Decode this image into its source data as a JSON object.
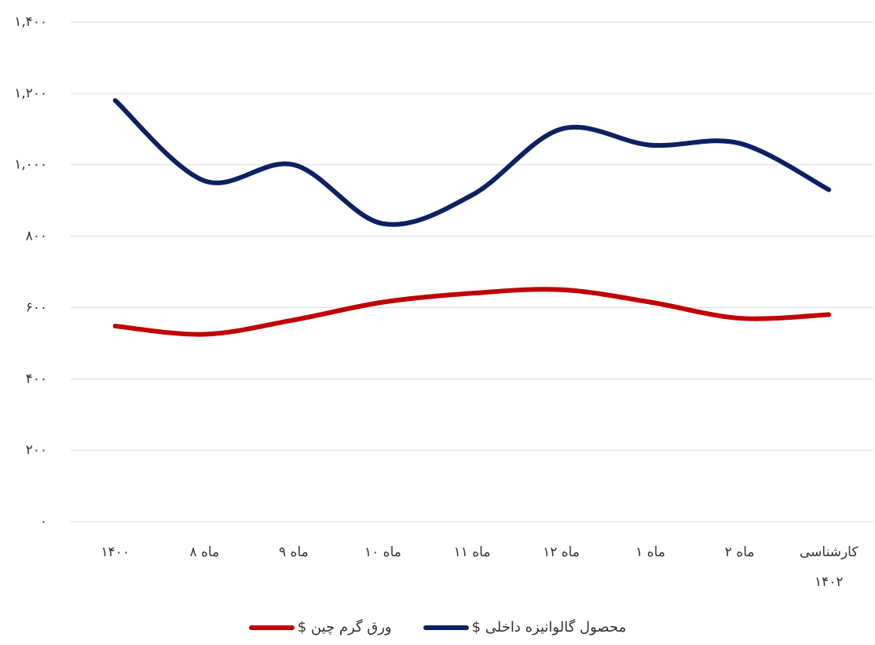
{
  "chart_data": {
    "type": "line",
    "categories": [
      "۱۴۰۰",
      "ماه ۸",
      "ماه ۹",
      "ماه ۱۰",
      "ماه ۱۱",
      "ماه ۱۲",
      "ماه ۱",
      "ماه ۲",
      "کارشناسی ۱۴۰۲"
    ],
    "series": [
      {
        "name": "محصول گالوانیزه داخلی $",
        "color": "#0b2160",
        "values": [
          1180,
          955,
          1000,
          835,
          915,
          1100,
          1055,
          1060,
          930
        ]
      },
      {
        "name": "ورق گرم چین $",
        "color": "#c00000",
        "values": [
          548,
          525,
          565,
          615,
          640,
          650,
          615,
          570,
          580
        ]
      }
    ],
    "ylim": [
      0,
      1400
    ],
    "yticks": [
      {
        "value": 0,
        "label": "۰"
      },
      {
        "value": 200,
        "label": "۲۰۰"
      },
      {
        "value": 400,
        "label": "۴۰۰"
      },
      {
        "value": 600,
        "label": "۶۰۰"
      },
      {
        "value": 800,
        "label": "۸۰۰"
      },
      {
        "value": 1000,
        "label": "۱,۰۰۰"
      },
      {
        "value": 1200,
        "label": "۱,۲۰۰"
      },
      {
        "value": 1400,
        "label": "۱,۴۰۰"
      }
    ],
    "grid": true,
    "smooth": true,
    "legend": "bottom"
  }
}
